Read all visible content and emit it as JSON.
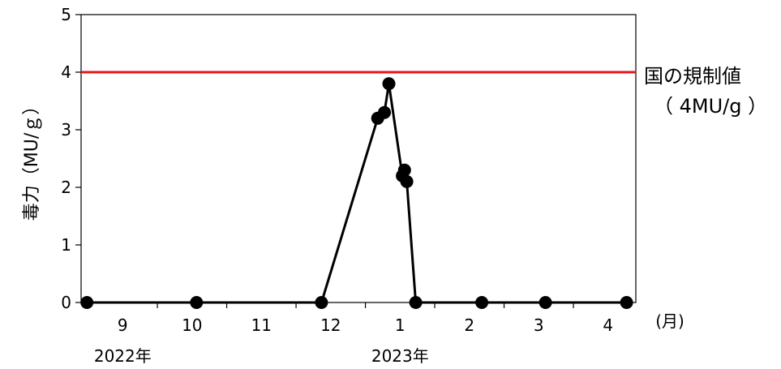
{
  "chart_data": {
    "type": "line",
    "title": "",
    "ylabel": "毒力（MU/ｇ）",
    "xlabel_unit": "(月)",
    "ylim": [
      0,
      5
    ],
    "yticks": [
      "0",
      "1",
      "2",
      "3",
      "4",
      "5"
    ],
    "xlim_month_index": [
      8.4,
      16.4
    ],
    "month_ticks": [
      {
        "label": "9",
        "month_index": 9
      },
      {
        "label": "10",
        "month_index": 10
      },
      {
        "label": "11",
        "month_index": 11
      },
      {
        "label": "12",
        "month_index": 12
      },
      {
        "label": "1",
        "month_index": 13
      },
      {
        "label": "2",
        "month_index": 14
      },
      {
        "label": "3",
        "month_index": 15
      },
      {
        "label": "4",
        "month_index": 16
      }
    ],
    "year_labels": [
      {
        "label": "2022年",
        "month_index": 9
      },
      {
        "label": "2023年",
        "month_index": 13
      }
    ],
    "series": [
      {
        "color": "#000000",
        "points": [
          {
            "date": "2022-08-16",
            "y": 0
          },
          {
            "date": "2022-10-03",
            "y": 0
          },
          {
            "date": "2022-11-27",
            "y": 0
          },
          {
            "date": "2022-12-22",
            "y": 3.2
          },
          {
            "date": "2022-12-25",
            "y": 3.3
          },
          {
            "date": "2022-12-27",
            "y": 3.8
          },
          {
            "date": "2023-01-02",
            "y": 2.2
          },
          {
            "date": "2023-01-03",
            "y": 2.3
          },
          {
            "date": "2023-01-04",
            "y": 2.1
          },
          {
            "date": "2023-01-08",
            "y": 0
          },
          {
            "date": "2023-02-06",
            "y": 0
          },
          {
            "date": "2023-03-04",
            "y": 0
          },
          {
            "date": "2023-04-09",
            "y": 0
          }
        ]
      }
    ],
    "reference_line": {
      "y": 4,
      "color": "#e8141c",
      "label_line1": "国の規制値",
      "label_line2": "（ 4MU/g ）"
    },
    "grid": false,
    "legend": "none"
  }
}
